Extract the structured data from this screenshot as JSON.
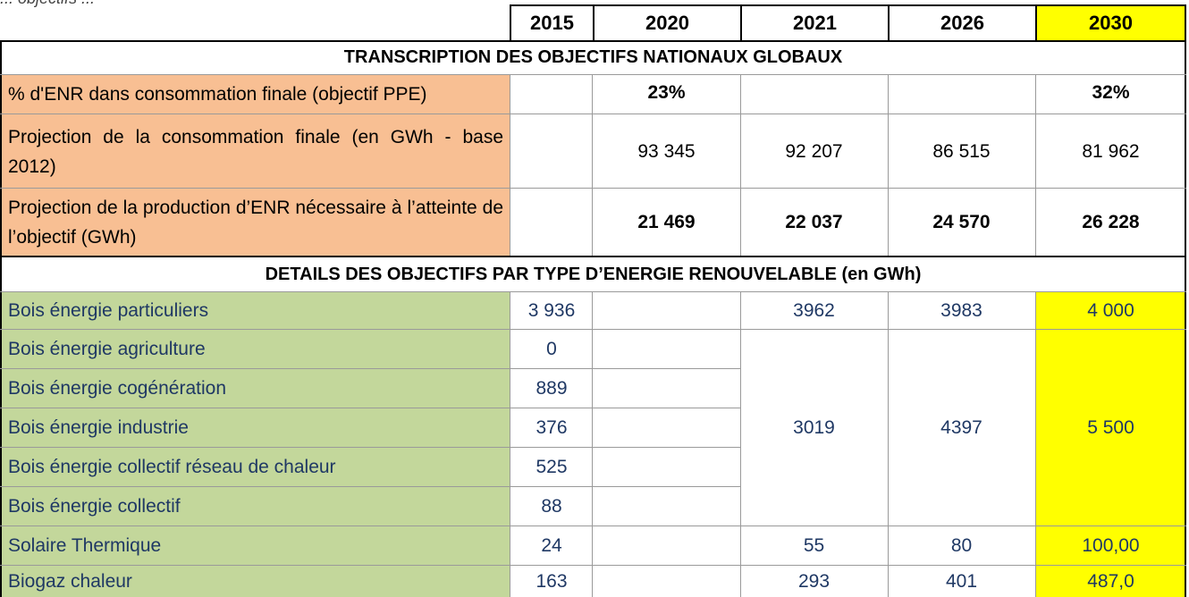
{
  "top_fragment": "... objectifs ...",
  "years": [
    "2015",
    "2020",
    "2021",
    "2026",
    "2030"
  ],
  "sections": {
    "global": "TRANSCRIPTION DES OBJECTIFS NATIONAUX GLOBAUX",
    "details": "DETAILS DES OBJECTIFS PAR TYPE D’ENERGIE RENOUVELABLE (en GWh)"
  },
  "global_rows": [
    {
      "label": "% d'ENR dans consommation finale (objectif PPE)",
      "v2015": "",
      "v2020": "23%",
      "v2021": "",
      "v2026": "",
      "v2030": "32%"
    },
    {
      "label": "Projection de la consommation finale (en GWh - base 2012)",
      "v2015": "",
      "v2020": "93 345",
      "v2021": "92 207",
      "v2026": "86 515",
      "v2030": "81 962"
    },
    {
      "label": "Projection de la production d’ENR nécessaire à l’atteinte de l’objectif (GWh)",
      "v2015": "",
      "v2020": "21 469",
      "v2021": "22 037",
      "v2026": "24 570",
      "v2030": "26 228"
    }
  ],
  "detail_rows": [
    {
      "label": "Bois énergie particuliers",
      "v2015": "3 936",
      "v2021": "3962",
      "v2026": "3983",
      "v2030": "4 000"
    },
    {
      "label": "Bois énergie agriculture",
      "v2015": "0"
    },
    {
      "label": "Bois énergie cogénération",
      "v2015": "889"
    },
    {
      "label": "Bois énergie industrie",
      "v2015": "376"
    },
    {
      "label": "Bois énergie collectif réseau de chaleur",
      "v2015": "525"
    },
    {
      "label": "Bois énergie collectif",
      "v2015": "88"
    },
    {
      "label": "Solaire Thermique",
      "v2015": "24",
      "v2021": "55",
      "v2026": "80",
      "v2030": "100,00"
    },
    {
      "label": "Biogaz chaleur",
      "v2015": "163",
      "v2021": "293",
      "v2026": "401",
      "v2030": "487,0"
    }
  ],
  "merged_bois": {
    "v2021": "3019",
    "v2026": "4397",
    "v2030": "5 500"
  },
  "colors": {
    "orange": "#f8bf93",
    "green": "#c3d79b",
    "yellow": "#ffff00",
    "text_dark": "#1f3864"
  }
}
